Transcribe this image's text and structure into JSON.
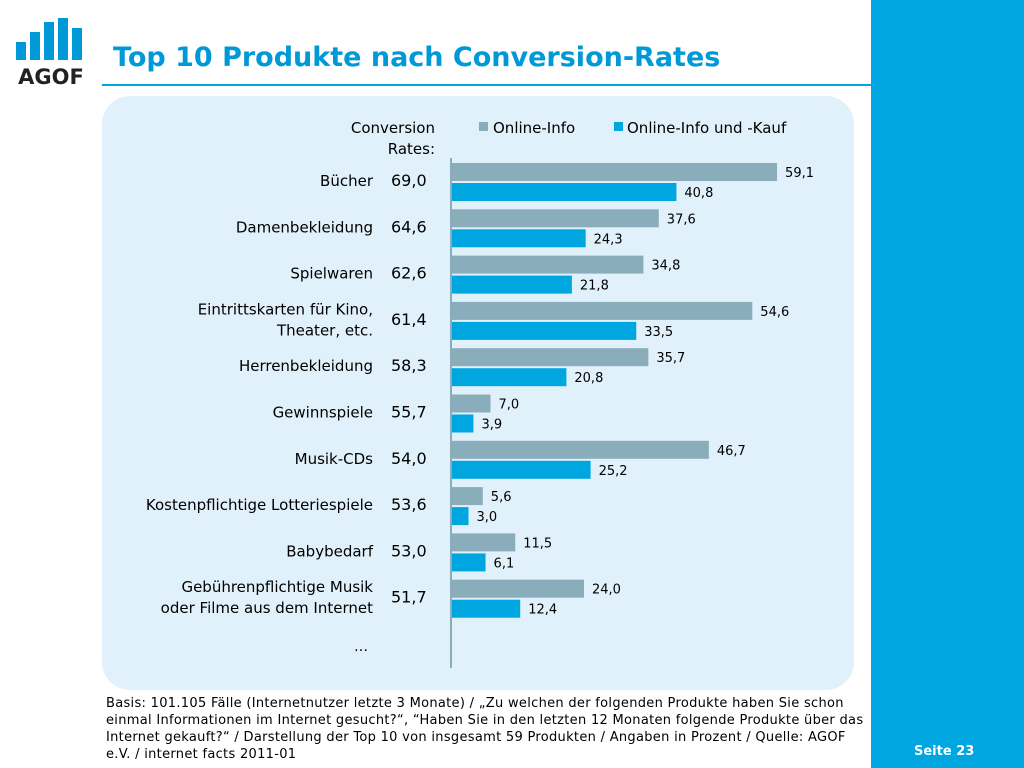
{
  "header": {
    "logo_text": "AGOF",
    "title": "Top 10 Produkte nach Conversion-Rates"
  },
  "colors": {
    "accent": "#00a6e0",
    "title": "#0099d8",
    "panel": "#e1f1fb",
    "series_online_info": "#8aadbb",
    "series_online_kauf": "#00a6e0"
  },
  "chart_data": {
    "type": "bar",
    "orientation": "horizontal",
    "column_header": [
      "Conversion",
      "Rates:"
    ],
    "categories": [
      [
        "Bücher"
      ],
      [
        "Damenbekleidung"
      ],
      [
        "Spielwaren"
      ],
      [
        "Eintrittskarten für Kino,",
        "Theater, etc."
      ],
      [
        "Herrenbekleidung"
      ],
      [
        "Gewinnspiele"
      ],
      [
        "Musik-CDs"
      ],
      [
        "Kostenpflichtige Lotteriespiele"
      ],
      [
        "Babybedarf"
      ],
      [
        "Gebührenpflichtige Musik",
        "oder Filme aus dem Internet"
      ]
    ],
    "conversion_rates": [
      "69,0",
      "64,6",
      "62,6",
      "61,4",
      "58,3",
      "55,7",
      "54,0",
      "53,6",
      "53,0",
      "51,7"
    ],
    "series": [
      {
        "name": "Online-Info",
        "values": [
          59.1,
          37.6,
          34.8,
          54.6,
          35.7,
          7.0,
          46.7,
          5.6,
          11.5,
          24.0
        ],
        "labels": [
          "59,1",
          "37,6",
          "34,8",
          "54,6",
          "35,7",
          "7,0",
          "46,7",
          "5,6",
          "11,5",
          "24,0"
        ]
      },
      {
        "name": "Online-Info und -Kauf",
        "values": [
          40.8,
          24.3,
          21.8,
          33.5,
          20.8,
          3.9,
          25.2,
          3.0,
          6.1,
          12.4
        ],
        "labels": [
          "40,8",
          "24,3",
          "21,8",
          "33,5",
          "20,8",
          "3,9",
          "25,2",
          "3,0",
          "6,1",
          "12,4"
        ]
      }
    ],
    "more_marker": "…",
    "legend_position": "top",
    "grid": false
  },
  "footer": {
    "note": "Basis: 101.105 Fälle (Internetnutzer letzte 3 Monate) / „Zu welchen der folgenden Produkte haben Sie schon einmal Informationen im Internet gesucht?“, “Haben Sie in den letzten 12 Monaten folgende Produkte über das Internet gekauft?“ / Darstellung der Top 10 von insgesamt 59 Produkten / Angaben in Prozent / Quelle: AGOF e.V. / internet facts 2011-01",
    "page": "Seite 23"
  }
}
